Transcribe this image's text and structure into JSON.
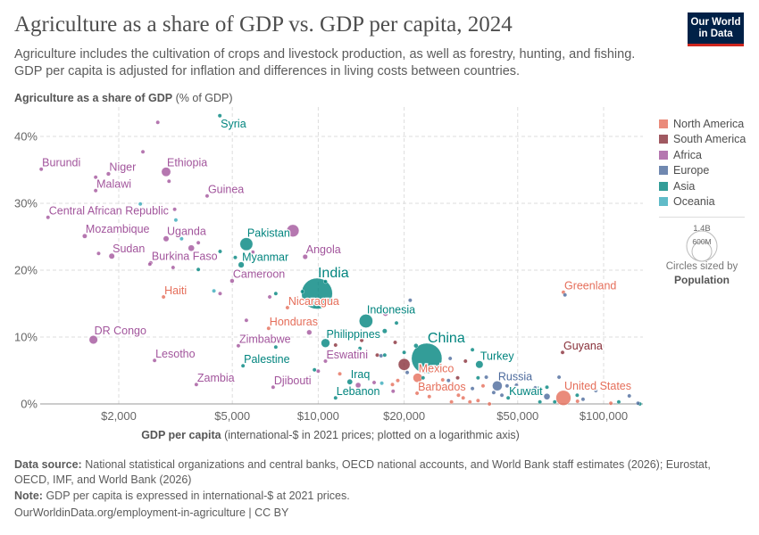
{
  "header": {
    "title": "Agriculture as a share of GDP vs. GDP per capita, 2024",
    "subtitle": "Agriculture includes the cultivation of crops and livestock production, as well as forestry, hunting, and fishing. GDP per capita is adjusted for inflation and differences in living costs between countries.",
    "logo": "Our World in Data"
  },
  "chart_data": {
    "type": "scatter",
    "title": "Agriculture as a share of GDP vs. GDP per capita, 2024",
    "ylabel_bold": "Agriculture as a share of GDP",
    "ylabel_unit": "(% of GDP)",
    "xlabel_bold": "GDP per capita",
    "xlabel_unit": "(international-$ in 2021 prices; plotted on a logarithmic axis)",
    "xscale": "log",
    "xlim": [
      1060,
      137000
    ],
    "ylim": [
      0,
      44
    ],
    "grid": true,
    "x_ticks": [
      {
        "value": 2000,
        "label": "$2,000"
      },
      {
        "value": 5000,
        "label": "$5,000"
      },
      {
        "value": 10000,
        "label": "$10,000"
      },
      {
        "value": 20000,
        "label": "$20,000"
      },
      {
        "value": 50000,
        "label": "$50,000"
      },
      {
        "value": 100000,
        "label": "$100,000"
      }
    ],
    "y_ticks": [
      {
        "value": 0,
        "label": "0%"
      },
      {
        "value": 10,
        "label": "10%"
      },
      {
        "value": 20,
        "label": "20%"
      },
      {
        "value": 30,
        "label": "30%"
      },
      {
        "value": 40,
        "label": "40%"
      }
    ],
    "legend_position": "right",
    "legend": [
      {
        "name": "North America",
        "color": "#E56E5A"
      },
      {
        "name": "South America",
        "color": "#883039"
      },
      {
        "name": "Africa",
        "color": "#A2559C"
      },
      {
        "name": "Europe",
        "color": "#4C6A9C"
      },
      {
        "name": "Asia",
        "color": "#00847E"
      },
      {
        "name": "Oceania",
        "color": "#38AABA"
      }
    ],
    "size_legend": {
      "caption": "Circles sized by",
      "variable": "Population",
      "large": "1.4B",
      "small": "600M"
    },
    "points": [
      {
        "label": "Burundi",
        "region": "Africa",
        "gdp": 1070,
        "share": 35.1,
        "pop": 14
      },
      {
        "label": "Niger",
        "region": "Africa",
        "gdp": 1840,
        "share": 34.4,
        "pop": 27
      },
      {
        "label": "Malawi",
        "region": "Africa",
        "gdp": 1660,
        "share": 31.9,
        "pop": 21
      },
      {
        "label": "Ethiopia",
        "region": "Africa",
        "gdp": 2930,
        "share": 34.7,
        "pop": 130
      },
      {
        "label": "Guinea",
        "region": "Africa",
        "gdp": 4080,
        "share": 31.1,
        "pop": 14
      },
      {
        "label": "Syria",
        "region": "Asia",
        "gdp": 4520,
        "share": 43.1,
        "pop": 24
      },
      {
        "label": "Central African Republic",
        "region": "Africa",
        "gdp": 1130,
        "share": 27.9,
        "pop": 5
      },
      {
        "label": "Mozambique",
        "region": "Africa",
        "gdp": 1520,
        "share": 25.1,
        "pop": 34
      },
      {
        "label": "Uganda",
        "region": "Africa",
        "gdp": 2930,
        "share": 24.7,
        "pop": 50
      },
      {
        "label": "Pakistan",
        "region": "Asia",
        "gdp": 5600,
        "share": 23.9,
        "pop": 250
      },
      {
        "label": "Sudan",
        "region": "Africa",
        "gdp": 1890,
        "share": 22.1,
        "pop": 50
      },
      {
        "label": "Burkina Faso",
        "region": "Africa",
        "gdp": 2590,
        "share": 21.1,
        "pop": 23
      },
      {
        "label": "Myanmar",
        "region": "Asia",
        "gdp": 5370,
        "share": 20.8,
        "pop": 54
      },
      {
        "label": "Angola",
        "region": "Africa",
        "gdp": 9000,
        "share": 22.0,
        "pop": 38
      },
      {
        "label": "Cameroon",
        "region": "Africa",
        "gdp": 4990,
        "share": 18.4,
        "pop": 29
      },
      {
        "label": "India",
        "region": "Asia",
        "gdp": 9900,
        "share": 16.5,
        "pop": 1450
      },
      {
        "label": "Nicaragua",
        "region": "North America",
        "gdp": 7800,
        "share": 14.4,
        "pop": 7
      },
      {
        "label": "Haiti",
        "region": "North America",
        "gdp": 2870,
        "share": 16.0,
        "pop": 12
      },
      {
        "label": "Greenland",
        "region": "North America",
        "gdp": 72300,
        "share": 16.7,
        "pop": 0.06
      },
      {
        "label": "Indonesia",
        "region": "Asia",
        "gdp": 14700,
        "share": 12.4,
        "pop": 280
      },
      {
        "label": "Honduras",
        "region": "North America",
        "gdp": 6700,
        "share": 11.3,
        "pop": 11
      },
      {
        "label": "DR Congo",
        "region": "Africa",
        "gdp": 1630,
        "share": 9.6,
        "pop": 110
      },
      {
        "label": "Philippines",
        "region": "Asia",
        "gdp": 10600,
        "share": 9.1,
        "pop": 115
      },
      {
        "label": "Zimbabwe",
        "region": "Africa",
        "gdp": 5250,
        "share": 8.7,
        "pop": 17
      },
      {
        "label": "China",
        "region": "Asia",
        "gdp": 24000,
        "share": 6.8,
        "pop": 1410
      },
      {
        "label": "Eswatini",
        "region": "Africa",
        "gdp": 10600,
        "share": 6.4,
        "pop": 1.2
      },
      {
        "label": "Guyana",
        "region": "South America",
        "gdp": 71800,
        "share": 7.7,
        "pop": 0.8
      },
      {
        "label": "Lesotho",
        "region": "Africa",
        "gdp": 2670,
        "share": 6.5,
        "pop": 2.3
      },
      {
        "label": "Turkey",
        "region": "Asia",
        "gdp": 36700,
        "share": 5.9,
        "pop": 86
      },
      {
        "label": "Palestine",
        "region": "Asia",
        "gdp": 5450,
        "share": 5.7,
        "pop": 5
      },
      {
        "label": "Mexico",
        "region": "North America",
        "gdp": 22300,
        "share": 3.9,
        "pop": 130
      },
      {
        "label": "Iraq",
        "region": "Asia",
        "gdp": 12900,
        "share": 3.3,
        "pop": 46
      },
      {
        "label": "Lebanon",
        "region": "Asia",
        "gdp": 11500,
        "share": 0.9,
        "pop": 5.8
      },
      {
        "label": "Zambia",
        "region": "Africa",
        "gdp": 3740,
        "share": 2.9,
        "pop": 21
      },
      {
        "label": "Djibouti",
        "region": "Africa",
        "gdp": 6950,
        "share": 2.5,
        "pop": 1.2
      },
      {
        "label": "Russia",
        "region": "Europe",
        "gdp": 42400,
        "share": 2.7,
        "pop": 145
      },
      {
        "label": "Barbados",
        "region": "North America",
        "gdp": 22200,
        "share": 1.6,
        "pop": 0.3
      },
      {
        "label": "Kuwait",
        "region": "Asia",
        "gdp": 46300,
        "share": 0.9,
        "pop": 4.9
      },
      {
        "label": "United States",
        "region": "North America",
        "gdp": 72300,
        "share": 0.9,
        "pop": 340
      },
      {
        "region": "Africa",
        "gdp": 2740,
        "share": 42.1,
        "pop": 10
      },
      {
        "region": "Africa",
        "gdp": 2430,
        "share": 37.7,
        "pop": 10
      },
      {
        "region": "Africa",
        "gdp": 1660,
        "share": 33.9,
        "pop": 10
      },
      {
        "region": "Africa",
        "gdp": 3000,
        "share": 33.3,
        "pop": 12
      },
      {
        "region": "Africa",
        "gdp": 3140,
        "share": 29.1,
        "pop": 10
      },
      {
        "region": "Africa",
        "gdp": 3800,
        "share": 24.1,
        "pop": 10
      },
      {
        "region": "Africa",
        "gdp": 3590,
        "share": 23.3,
        "pop": 60
      },
      {
        "region": "Africa",
        "gdp": 1700,
        "share": 22.5,
        "pop": 10
      },
      {
        "region": "Africa",
        "gdp": 5900,
        "share": 22.7,
        "pop": 10
      },
      {
        "region": "Africa",
        "gdp": 7100,
        "share": 22.1,
        "pop": 10
      },
      {
        "region": "Africa",
        "gdp": 2570,
        "share": 20.9,
        "pop": 10
      },
      {
        "region": "Africa",
        "gdp": 3100,
        "share": 20.4,
        "pop": 10
      },
      {
        "region": "Africa",
        "gdp": 4530,
        "share": 16.5,
        "pop": 10
      },
      {
        "region": "Africa",
        "gdp": 6760,
        "share": 16.0,
        "pop": 15
      },
      {
        "region": "Africa",
        "gdp": 5600,
        "share": 12.5,
        "pop": 8
      },
      {
        "region": "Africa",
        "gdp": 9300,
        "share": 10.7,
        "pop": 40
      },
      {
        "region": "Africa",
        "gdp": 10000,
        "share": 4.9,
        "pop": 5
      },
      {
        "region": "Africa",
        "gdp": 17200,
        "share": 13.5,
        "pop": 40
      },
      {
        "region": "Africa",
        "gdp": 13800,
        "share": 2.8,
        "pop": 45
      },
      {
        "region": "Africa",
        "gdp": 18300,
        "share": 1.9,
        "pop": 5
      },
      {
        "region": "Africa",
        "gdp": 15700,
        "share": 3.2,
        "pop": 5
      },
      {
        "region": "Africa",
        "gdp": 8150,
        "share": 25.9,
        "pop": 230
      },
      {
        "region": "Asia",
        "gdp": 4530,
        "share": 22.8,
        "pop": 10
      },
      {
        "region": "Asia",
        "gdp": 5120,
        "share": 21.9,
        "pop": 15
      },
      {
        "region": "Asia",
        "gdp": 3800,
        "share": 20.1,
        "pop": 10
      },
      {
        "region": "Asia",
        "gdp": 7100,
        "share": 16.5,
        "pop": 10
      },
      {
        "region": "Asia",
        "gdp": 7100,
        "share": 8.5,
        "pop": 10
      },
      {
        "region": "Asia",
        "gdp": 9700,
        "share": 5.1,
        "pop": 8
      },
      {
        "region": "Asia",
        "gdp": 10600,
        "share": 18.3,
        "pop": 10
      },
      {
        "region": "Asia",
        "gdp": 8800,
        "share": 16.8,
        "pop": 5
      },
      {
        "region": "Asia",
        "gdp": 18800,
        "share": 12.1,
        "pop": 10
      },
      {
        "region": "Asia",
        "gdp": 17100,
        "share": 10.9,
        "pop": 35
      },
      {
        "region": "Asia",
        "gdp": 20000,
        "share": 7.7,
        "pop": 8
      },
      {
        "region": "Asia",
        "gdp": 22000,
        "share": 8.7,
        "pop": 30
      },
      {
        "region": "Asia",
        "gdp": 34700,
        "share": 8.1,
        "pop": 10
      },
      {
        "region": "Asia",
        "gdp": 14000,
        "share": 8.3,
        "pop": 10
      },
      {
        "region": "Asia",
        "gdp": 17100,
        "share": 7.3,
        "pop": 8
      },
      {
        "region": "Asia",
        "gdp": 23300,
        "share": 3.9,
        "pop": 10
      },
      {
        "region": "Asia",
        "gdp": 36300,
        "share": 3.9,
        "pop": 10
      },
      {
        "region": "Asia",
        "gdp": 63300,
        "share": 2.5,
        "pop": 10
      },
      {
        "region": "Asia",
        "gdp": 59800,
        "share": 0.3,
        "pop": 10
      },
      {
        "region": "Asia",
        "gdp": 67400,
        "share": 0.3,
        "pop": 8
      },
      {
        "region": "Asia",
        "gdp": 80800,
        "share": 1.3,
        "pop": 10
      },
      {
        "region": "Asia",
        "gdp": 113000,
        "share": 0.3,
        "pop": 5
      },
      {
        "region": "Asia",
        "gdp": 134000,
        "share": 0.0,
        "pop": 6
      },
      {
        "region": "Oceania",
        "gdp": 2380,
        "share": 29.9,
        "pop": 10
      },
      {
        "region": "Oceania",
        "gdp": 3170,
        "share": 27.5,
        "pop": 10
      },
      {
        "region": "Oceania",
        "gdp": 3320,
        "share": 24.7,
        "pop": 10
      },
      {
        "region": "Oceania",
        "gdp": 4310,
        "share": 16.9,
        "pop": 10
      },
      {
        "region": "Oceania",
        "gdp": 16700,
        "share": 3.1,
        "pop": 10
      },
      {
        "region": "South America",
        "gdp": 20000,
        "share": 5.9,
        "pop": 210
      },
      {
        "region": "South America",
        "gdp": 16100,
        "share": 7.3,
        "pop": 10
      },
      {
        "region": "South America",
        "gdp": 18600,
        "share": 9.2,
        "pop": 18
      },
      {
        "region": "South America",
        "gdp": 14200,
        "share": 9.5,
        "pop": 10
      },
      {
        "region": "South America",
        "gdp": 11500,
        "share": 8.8,
        "pop": 10
      },
      {
        "region": "South America",
        "gdp": 32800,
        "share": 6.4,
        "pop": 10
      },
      {
        "region": "South America",
        "gdp": 30800,
        "share": 3.9,
        "pop": 10
      },
      {
        "region": "Europe",
        "gdp": 21000,
        "share": 15.5,
        "pop": 10
      },
      {
        "region": "Europe",
        "gdp": 16600,
        "share": 7.2,
        "pop": 10
      },
      {
        "region": "Europe",
        "gdp": 29000,
        "share": 6.8,
        "pop": 10
      },
      {
        "region": "Europe",
        "gdp": 20500,
        "share": 4.7,
        "pop": 10
      },
      {
        "region": "Europe",
        "gdp": 28600,
        "share": 3.5,
        "pop": 10
      },
      {
        "region": "Europe",
        "gdp": 38800,
        "share": 4.0,
        "pop": 10
      },
      {
        "region": "Europe",
        "gdp": 34700,
        "share": 2.3,
        "pop": 10
      },
      {
        "region": "Europe",
        "gdp": 45900,
        "share": 2.7,
        "pop": 10
      },
      {
        "region": "Europe",
        "gdp": 49500,
        "share": 2.8,
        "pop": 10
      },
      {
        "region": "Europe",
        "gdp": 54700,
        "share": 2.0,
        "pop": 40
      },
      {
        "region": "Europe",
        "gdp": 57600,
        "share": 2.4,
        "pop": 10
      },
      {
        "region": "Europe",
        "gdp": 69800,
        "share": 4.0,
        "pop": 10
      },
      {
        "region": "Europe",
        "gdp": 63300,
        "share": 1.1,
        "pop": 60
      },
      {
        "region": "Europe",
        "gdp": 84700,
        "share": 0.7,
        "pop": 10
      },
      {
        "region": "Europe",
        "gdp": 93900,
        "share": 2.0,
        "pop": 10
      },
      {
        "region": "Europe",
        "gdp": 123000,
        "share": 1.2,
        "pop": 5
      },
      {
        "region": "Europe",
        "gdp": 132000,
        "share": 0.1,
        "pop": 3
      },
      {
        "region": "Europe",
        "gdp": 44000,
        "share": 1.3,
        "pop": 10
      },
      {
        "region": "Europe",
        "gdp": 41200,
        "share": 1.7,
        "pop": 10
      },
      {
        "region": "Europe",
        "gdp": 73200,
        "share": 16.3,
        "pop": 0.05
      },
      {
        "region": "North America",
        "gdp": 11900,
        "share": 4.5,
        "pop": 10
      },
      {
        "region": "North America",
        "gdp": 19000,
        "share": 3.5,
        "pop": 10
      },
      {
        "region": "North America",
        "gdp": 18200,
        "share": 2.9,
        "pop": 10
      },
      {
        "region": "North America",
        "gdp": 27300,
        "share": 3.6,
        "pop": 10
      },
      {
        "region": "North America",
        "gdp": 24500,
        "share": 1.1,
        "pop": 5
      },
      {
        "region": "North America",
        "gdp": 31000,
        "share": 1.3,
        "pop": 5
      },
      {
        "region": "North America",
        "gdp": 32200,
        "share": 0.9,
        "pop": 5
      },
      {
        "region": "North America",
        "gdp": 34000,
        "share": 0.3,
        "pop": 5
      },
      {
        "region": "North America",
        "gdp": 36300,
        "share": 0.5,
        "pop": 5
      },
      {
        "region": "North America",
        "gdp": 39800,
        "share": 0.0,
        "pop": 5
      },
      {
        "region": "North America",
        "gdp": 29300,
        "share": 0.3,
        "pop": 5
      },
      {
        "region": "North America",
        "gdp": 37800,
        "share": 2.7,
        "pop": 5
      },
      {
        "region": "North America",
        "gdp": 106000,
        "share": 0.1,
        "pop": 5
      },
      {
        "region": "North America",
        "gdp": 81000,
        "share": 0.4,
        "pop": 5
      }
    ]
  },
  "footer": {
    "source_label": "Data source:",
    "source_text": "National statistical organizations and central banks, OECD national accounts, and World Bank staff estimates (2026); Eurostat, OECD, IMF, and World Bank (2026)",
    "note_label": "Note:",
    "note_text": "GDP per capita is expressed in international-$ at 2021 prices.",
    "url": "OurWorldinData.org/employment-in-agriculture | CC BY"
  }
}
